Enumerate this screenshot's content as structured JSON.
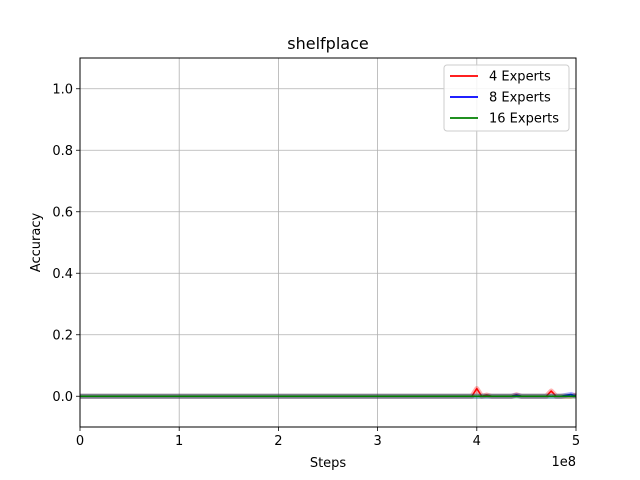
{
  "chart_data": {
    "type": "line",
    "title": "shelfplace",
    "xlabel": "Steps",
    "ylabel": "Accuracy",
    "x_offset_label": "1e8",
    "xlim": [
      0,
      5
    ],
    "ylim": [
      -0.1,
      1.1
    ],
    "x_ticks": [
      0,
      1,
      2,
      3,
      4,
      5
    ],
    "x_tick_labels": [
      "0",
      "1",
      "2",
      "3",
      "4",
      "5"
    ],
    "y_ticks": [
      0.0,
      0.2,
      0.4,
      0.6,
      0.8,
      1.0
    ],
    "y_tick_labels": [
      "0.0",
      "0.2",
      "0.4",
      "0.6",
      "0.8",
      "1.0"
    ],
    "grid": true,
    "legend_position": "top-right",
    "series": [
      {
        "name": "4 Experts",
        "color": "#ff0000",
        "x": [
          0,
          3.95,
          4.0,
          4.05,
          4.1,
          4.15,
          4.35,
          4.4,
          4.45,
          4.7,
          4.75,
          4.8,
          4.95,
          5.0
        ],
        "y": [
          0,
          0,
          0.025,
          0,
          0.004,
          0,
          0,
          0.005,
          0,
          0,
          0.017,
          0,
          0,
          0.004
        ]
      },
      {
        "name": "8 Experts",
        "color": "#0000ff",
        "x": [
          0,
          4.35,
          4.4,
          4.45,
          4.85,
          4.95,
          5.0
        ],
        "y": [
          0,
          0,
          0.003,
          0,
          0,
          0.006,
          0
        ]
      },
      {
        "name": "16 Experts",
        "color": "#008000",
        "x": [
          0,
          5.0
        ],
        "y": [
          0,
          0
        ]
      }
    ]
  }
}
